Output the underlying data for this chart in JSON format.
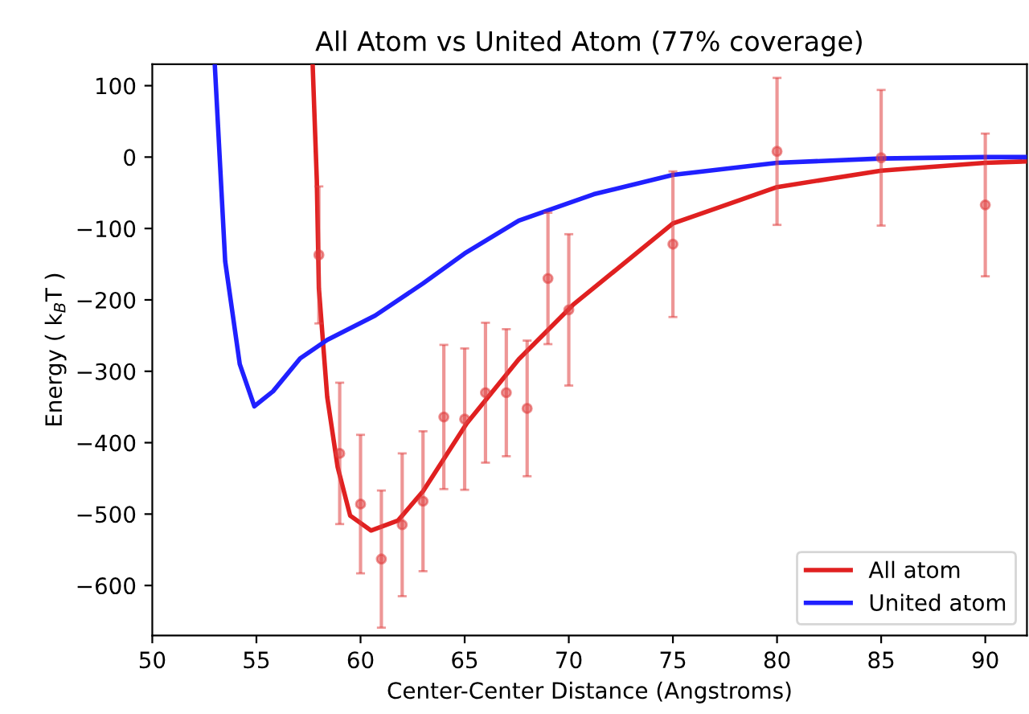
{
  "chart_data": {
    "type": "line",
    "title": "All Atom vs United Atom (77% coverage)",
    "xlabel": "Center-Center Distance (Angstroms)",
    "ylabel": "Energy ( k$_{B}$T )",
    "xlim": [
      50,
      92
    ],
    "ylim": [
      -670,
      130
    ],
    "xticks": [
      50,
      55,
      60,
      65,
      70,
      75,
      80,
      85,
      90
    ],
    "yticks": [
      -600,
      -500,
      -400,
      -300,
      -200,
      -100,
      0,
      100
    ],
    "grid": false,
    "legend": "bottom right",
    "series": [
      {
        "name": "All atom",
        "color": "#e02020",
        "x": [
          57.7,
          57.9,
          58.0,
          58.4,
          58.9,
          59.5,
          60.5,
          61.8,
          63,
          65.1,
          67.6,
          70.2,
          75,
          80,
          85,
          90,
          92
        ],
        "values": [
          130,
          -32,
          -184,
          -336,
          -434,
          -502,
          -523,
          -509,
          -468,
          -373,
          -283,
          -207,
          -93,
          -42,
          -19,
          -8,
          -6
        ]
      },
      {
        "name": "United atom",
        "color": "#2020ff",
        "x": [
          53.0,
          53.5,
          54.2,
          54.9,
          55.8,
          57.1,
          58.4,
          60.7,
          63.0,
          65.0,
          67.6,
          71.2,
          75,
          80,
          85,
          90,
          92
        ],
        "values": [
          130,
          -146,
          -290,
          -349,
          -328,
          -282,
          -256,
          -222,
          -177,
          -135,
          -89,
          -52,
          -25,
          -8,
          -2,
          0,
          0
        ]
      },
      {
        "color": "#e04040",
        "type": "scatter",
        "marker": "circle",
        "x": [
          58,
          59,
          60,
          61,
          62,
          63,
          64,
          65,
          66,
          67,
          68,
          69,
          70,
          75,
          80,
          85,
          90
        ],
        "values": [
          -137,
          -415,
          -486,
          -563,
          -515,
          -482,
          -364,
          -367,
          -330,
          -330,
          -352,
          -170,
          -214,
          -122,
          8,
          -1,
          -67
        ],
        "errors": [
          96,
          99,
          97,
          96,
          100,
          98,
          101,
          99,
          98,
          89,
          95,
          92,
          106,
          102,
          103,
          95,
          100
        ]
      }
    ]
  }
}
